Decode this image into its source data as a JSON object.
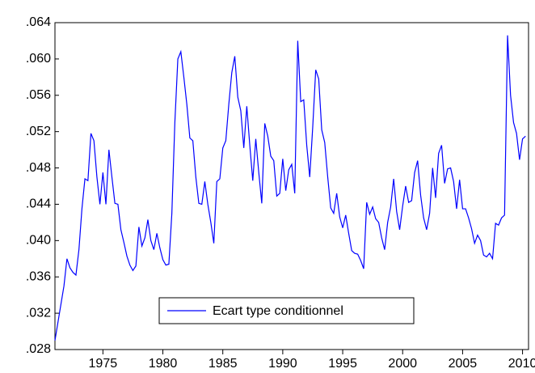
{
  "chart_data": {
    "type": "line",
    "x": [
      1971,
      1971.25,
      1971.5,
      1971.75,
      1972,
      1972.25,
      1972.5,
      1972.75,
      1973,
      1973.25,
      1973.5,
      1973.75,
      1974,
      1974.25,
      1974.5,
      1974.75,
      1975,
      1975.25,
      1975.5,
      1975.75,
      1976,
      1976.25,
      1976.5,
      1976.75,
      1977,
      1977.25,
      1977.5,
      1977.75,
      1978,
      1978.25,
      1978.5,
      1978.75,
      1979,
      1979.25,
      1979.5,
      1979.75,
      1980,
      1980.25,
      1980.5,
      1980.75,
      1981,
      1981.25,
      1981.5,
      1981.75,
      1982,
      1982.25,
      1982.5,
      1982.75,
      1983,
      1983.25,
      1983.5,
      1983.75,
      1984,
      1984.25,
      1984.5,
      1984.75,
      1985,
      1985.25,
      1985.5,
      1985.75,
      1986,
      1986.25,
      1986.5,
      1986.75,
      1987,
      1987.25,
      1987.5,
      1987.75,
      1988,
      1988.25,
      1988.5,
      1988.75,
      1989,
      1989.25,
      1989.5,
      1989.75,
      1990,
      1990.25,
      1990.5,
      1990.75,
      1991,
      1991.25,
      1991.5,
      1991.75,
      1992,
      1992.25,
      1992.5,
      1992.75,
      1993,
      1993.25,
      1993.5,
      1993.75,
      1994,
      1994.25,
      1994.5,
      1994.75,
      1995,
      1995.25,
      1995.5,
      1995.75,
      1996,
      1996.25,
      1996.5,
      1996.75,
      1997,
      1997.25,
      1997.5,
      1997.75,
      1998,
      1998.25,
      1998.5,
      1998.75,
      1999,
      1999.25,
      1999.5,
      1999.75,
      2000,
      2000.25,
      2000.5,
      2000.75,
      2001,
      2001.25,
      2001.5,
      2001.75,
      2002,
      2002.25,
      2002.5,
      2002.75,
      2003,
      2003.25,
      2003.5,
      2003.75,
      2004,
      2004.25,
      2004.5,
      2004.75,
      2005,
      2005.25,
      2005.5,
      2005.75,
      2006,
      2006.25,
      2006.5,
      2006.75,
      2007,
      2007.25,
      2007.5,
      2007.75,
      2008,
      2008.25,
      2008.5,
      2008.75,
      2009,
      2009.25,
      2009.5,
      2009.75,
      2010,
      2010.25
    ],
    "series": [
      {
        "name": "Ecart type conditionnel",
        "color": "#0000ff",
        "values": [
          0.029,
          0.031,
          0.033,
          0.035,
          0.038,
          0.037,
          0.0365,
          0.0362,
          0.039,
          0.0435,
          0.0468,
          0.0466,
          0.0518,
          0.051,
          0.047,
          0.044,
          0.0475,
          0.044,
          0.05,
          0.047,
          0.0441,
          0.044,
          0.0412,
          0.0398,
          0.0383,
          0.0373,
          0.0367,
          0.0372,
          0.0415,
          0.0394,
          0.0403,
          0.0423,
          0.04,
          0.039,
          0.0408,
          0.0392,
          0.0379,
          0.0373,
          0.0374,
          0.043,
          0.053,
          0.06,
          0.0608,
          0.058,
          0.055,
          0.0513,
          0.051,
          0.047,
          0.0441,
          0.044,
          0.0465,
          0.044,
          0.042,
          0.0397,
          0.0465,
          0.0468,
          0.0502,
          0.051,
          0.055,
          0.0585,
          0.0603,
          0.0558,
          0.0543,
          0.0502,
          0.0548,
          0.0505,
          0.0466,
          0.0512,
          0.0475,
          0.0441,
          0.0529,
          0.0515,
          0.0493,
          0.0488,
          0.0449,
          0.0452,
          0.049,
          0.0455,
          0.0478,
          0.0484,
          0.0452,
          0.062,
          0.0553,
          0.0555,
          0.0505,
          0.047,
          0.0525,
          0.0588,
          0.0578,
          0.0522,
          0.0508,
          0.047,
          0.0436,
          0.043,
          0.0452,
          0.0426,
          0.0414,
          0.0428,
          0.0408,
          0.0389,
          0.0386,
          0.0385,
          0.0378,
          0.0369,
          0.0442,
          0.0429,
          0.0437,
          0.0424,
          0.042,
          0.0403,
          0.039,
          0.042,
          0.0437,
          0.0468,
          0.0432,
          0.0412,
          0.0438,
          0.046,
          0.0442,
          0.0444,
          0.0475,
          0.0488,
          0.045,
          0.0425,
          0.0412,
          0.043,
          0.048,
          0.0447,
          0.0496,
          0.0505,
          0.0463,
          0.0479,
          0.048,
          0.0465,
          0.0435,
          0.0467,
          0.0435,
          0.0435,
          0.0425,
          0.0413,
          0.0397,
          0.0406,
          0.04,
          0.0384,
          0.0382,
          0.0386,
          0.038,
          0.0419,
          0.0417,
          0.0425,
          0.0428,
          0.0626,
          0.056,
          0.053,
          0.0518,
          0.0489,
          0.0512,
          0.0515
        ]
      }
    ],
    "xlim": [
      1971,
      2010.5
    ],
    "xticks": [
      1975,
      1980,
      1985,
      1990,
      1995,
      2000,
      2005,
      2010
    ],
    "ylim": [
      0.028,
      0.064
    ],
    "yticks": [
      {
        "value": 0.028,
        "label": ".028"
      },
      {
        "value": 0.032,
        "label": ".032"
      },
      {
        "value": 0.036,
        "label": ".036"
      },
      {
        "value": 0.04,
        "label": ".040"
      },
      {
        "value": 0.044,
        "label": ".044"
      },
      {
        "value": 0.048,
        "label": ".048"
      },
      {
        "value": 0.052,
        "label": ".052"
      },
      {
        "value": 0.056,
        "label": ".056"
      },
      {
        "value": 0.06,
        "label": ".060"
      },
      {
        "value": 0.064,
        "label": ".064"
      }
    ]
  }
}
